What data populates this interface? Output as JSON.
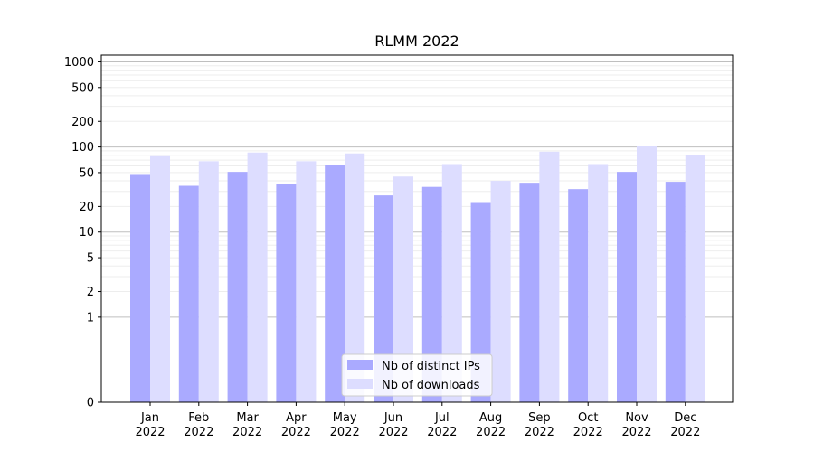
{
  "chart_data": {
    "type": "bar",
    "title": "RLMM 2022",
    "xlabel": "",
    "ylabel": "",
    "scale": "symlog",
    "ylim": [
      0,
      1200
    ],
    "yticks": [
      0,
      1,
      2,
      5,
      10,
      20,
      50,
      100,
      200,
      500,
      1000
    ],
    "grid": true,
    "legend_position": "bottom-center",
    "categories": [
      [
        "Jan",
        "2022"
      ],
      [
        "Feb",
        "2022"
      ],
      [
        "Mar",
        "2022"
      ],
      [
        "Apr",
        "2022"
      ],
      [
        "May",
        "2022"
      ],
      [
        "Jun",
        "2022"
      ],
      [
        "Jul",
        "2022"
      ],
      [
        "Aug",
        "2022"
      ],
      [
        "Sep",
        "2022"
      ],
      [
        "Oct",
        "2022"
      ],
      [
        "Nov",
        "2022"
      ],
      [
        "Dec",
        "2022"
      ]
    ],
    "series": [
      {
        "name": "Nb of distinct IPs",
        "color": "#aaaaff",
        "values": [
          47,
          35,
          51,
          37,
          61,
          27,
          34,
          22,
          38,
          32,
          51,
          39
        ]
      },
      {
        "name": "Nb of downloads",
        "color": "#ddddff",
        "values": [
          78,
          68,
          86,
          68,
          84,
          45,
          63,
          40,
          88,
          63,
          102,
          80
        ]
      }
    ]
  }
}
